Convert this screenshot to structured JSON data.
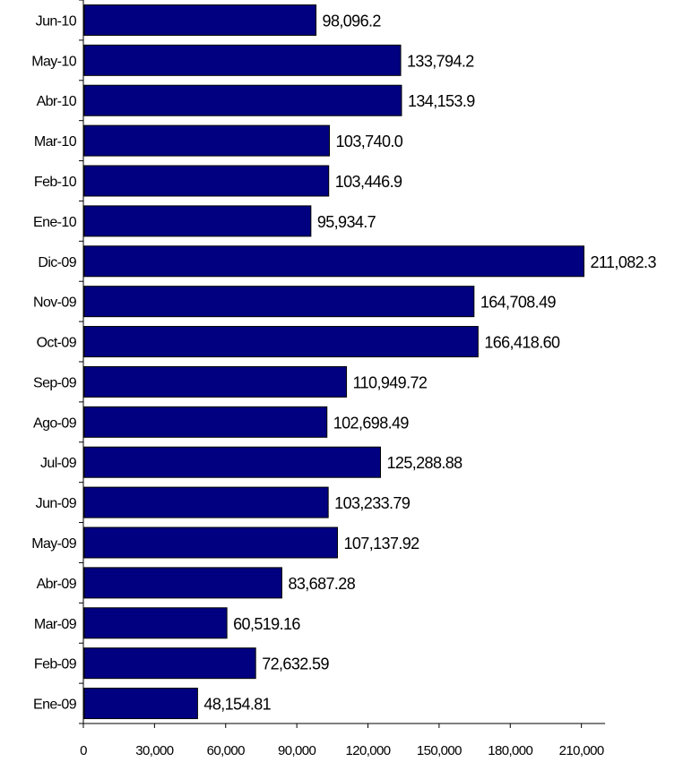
{
  "chart_data": {
    "type": "bar",
    "orientation": "horizontal",
    "categories": [
      "Jun-10",
      "May-10",
      "Abr-10",
      "Mar-10",
      "Feb-10",
      "Ene-10",
      "Dic-09",
      "Nov-09",
      "Oct-09",
      "Sep-09",
      "Ago-09",
      "Jul-09",
      "Jun-09",
      "May-09",
      "Abr-09",
      "Mar-09",
      "Feb-09",
      "Ene-09"
    ],
    "values": [
      98096.2,
      133794.2,
      134153.9,
      103740.0,
      103446.9,
      95934.7,
      211082.3,
      164708.49,
      166418.6,
      110949.72,
      102698.49,
      125288.88,
      103233.79,
      107137.92,
      83687.28,
      60519.16,
      72632.59,
      48154.81
    ],
    "value_labels": [
      "98,096.2",
      "133,794.2",
      "134,153.9",
      "103,740.0",
      "103,446.9",
      "95,934.7",
      "211,082.3",
      "164,708.49",
      "166,418.60",
      "110,949.72",
      "102,698.49",
      "125,288.88",
      "103,233.79",
      "107,137.92",
      "83,687.28",
      "60,519.16",
      "72,632.59",
      "48,154.81"
    ],
    "xlim": [
      0,
      220000
    ],
    "x_ticks": [
      0,
      30000,
      60000,
      90000,
      120000,
      150000,
      180000,
      210000
    ],
    "x_tick_labels": [
      "0",
      "30,000",
      "60,000",
      "90,000",
      "120,000",
      "150,000",
      "180,000",
      "210,000"
    ],
    "title": "",
    "xlabel": "",
    "ylabel": "",
    "grid": false,
    "legend": "none",
    "bar_color": "#000080"
  }
}
